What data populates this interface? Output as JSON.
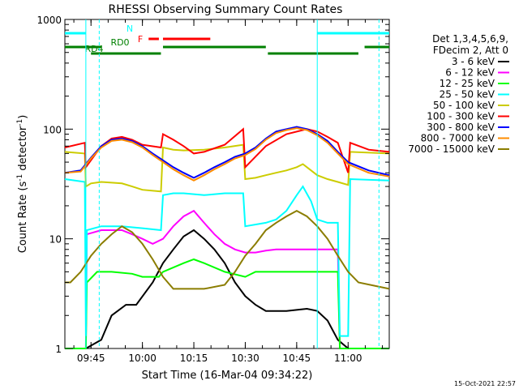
{
  "chart_data": {
    "type": "line",
    "title": "RHESSI Observing Summary Count Rates",
    "xlabel": "Start Time (16-Mar-04 09:34:22)",
    "ylabel_main": "Count Rate (s",
    "ylabel_sup1": "-1",
    "ylabel_mid": " detector",
    "ylabel_sup2": "-1",
    "ylabel_end": ")",
    "yscale": "log",
    "ylim": [
      1,
      1000
    ],
    "xlim_minutes": [
      9.623,
      11.2
    ],
    "xticks": [
      {
        "label": "09:45",
        "value": 9.75
      },
      {
        "label": "10:00",
        "value": 10.0
      },
      {
        "label": "10:15",
        "value": 10.25
      },
      {
        "label": "10:30",
        "value": 10.5
      },
      {
        "label": "10:45",
        "value": 10.75
      },
      {
        "label": "11:00",
        "value": 11.0
      }
    ],
    "yticks": [
      {
        "label": "1",
        "value": 1
      },
      {
        "label": "10",
        "value": 10
      },
      {
        "label": "100",
        "value": 100
      },
      {
        "label": "1000",
        "value": 1000
      }
    ],
    "legend_header": [
      "Det 1,3,4,5,6,9,",
      "FDecim 2, Att 0"
    ],
    "legend_position": "right",
    "series": [
      {
        "name": "3 - 6 keV",
        "color": "#000000",
        "points": [
          [
            9.623,
            1
          ],
          [
            9.725,
            1
          ],
          [
            9.8,
            1.2
          ],
          [
            9.85,
            2
          ],
          [
            9.92,
            2.5
          ],
          [
            9.97,
            2.5
          ],
          [
            10.05,
            4
          ],
          [
            10.1,
            6
          ],
          [
            10.15,
            8
          ],
          [
            10.2,
            10.5
          ],
          [
            10.25,
            12
          ],
          [
            10.3,
            10
          ],
          [
            10.35,
            8
          ],
          [
            10.4,
            6
          ],
          [
            10.45,
            4
          ],
          [
            10.5,
            3
          ],
          [
            10.55,
            2.5
          ],
          [
            10.6,
            2.2
          ],
          [
            10.7,
            2.2
          ],
          [
            10.8,
            2.3
          ],
          [
            10.85,
            2.2
          ],
          [
            10.9,
            1.8
          ],
          [
            10.95,
            1.2
          ],
          [
            11.0,
            1
          ],
          [
            11.2,
            1
          ]
        ]
      },
      {
        "name": "6 - 12 keV",
        "color": "#ff00ff",
        "points": [
          [
            9.623,
            1
          ],
          [
            9.725,
            1
          ],
          [
            9.73,
            11
          ],
          [
            9.8,
            12
          ],
          [
            9.85,
            12
          ],
          [
            9.9,
            12
          ],
          [
            9.95,
            11
          ],
          [
            10.0,
            10
          ],
          [
            10.05,
            9
          ],
          [
            10.1,
            10
          ],
          [
            10.15,
            13
          ],
          [
            10.2,
            16
          ],
          [
            10.25,
            18
          ],
          [
            10.3,
            14
          ],
          [
            10.35,
            11
          ],
          [
            10.4,
            9
          ],
          [
            10.45,
            8
          ],
          [
            10.5,
            7.5
          ],
          [
            10.55,
            7.5
          ],
          [
            10.6,
            7.8
          ],
          [
            10.65,
            8
          ],
          [
            10.7,
            8
          ],
          [
            10.8,
            8
          ],
          [
            10.9,
            8
          ],
          [
            10.95,
            8
          ],
          [
            10.96,
            1
          ],
          [
            11.2,
            1
          ]
        ]
      },
      {
        "name": "12 - 25 keV",
        "color": "#00ff00",
        "points": [
          [
            9.623,
            1
          ],
          [
            9.725,
            1
          ],
          [
            9.73,
            4
          ],
          [
            9.78,
            5
          ],
          [
            9.85,
            5
          ],
          [
            9.95,
            4.8
          ],
          [
            10.0,
            4.5
          ],
          [
            10.08,
            4.5
          ],
          [
            10.1,
            5
          ],
          [
            10.2,
            6
          ],
          [
            10.25,
            6.5
          ],
          [
            10.3,
            6
          ],
          [
            10.4,
            5
          ],
          [
            10.5,
            4.5
          ],
          [
            10.55,
            5
          ],
          [
            10.6,
            5
          ],
          [
            10.7,
            5
          ],
          [
            10.8,
            5
          ],
          [
            10.9,
            5
          ],
          [
            10.95,
            5
          ],
          [
            10.96,
            1
          ],
          [
            11.2,
            1
          ]
        ]
      },
      {
        "name": "25 - 50 keV",
        "color": "#00ffff",
        "points": [
          [
            9.623,
            35
          ],
          [
            9.72,
            33
          ],
          [
            9.725,
            1.3
          ],
          [
            9.73,
            12
          ],
          [
            9.8,
            13
          ],
          [
            9.9,
            13
          ],
          [
            10.0,
            12.5
          ],
          [
            10.09,
            12
          ],
          [
            10.1,
            25
          ],
          [
            10.15,
            26
          ],
          [
            10.2,
            26
          ],
          [
            10.3,
            25
          ],
          [
            10.4,
            26
          ],
          [
            10.49,
            26
          ],
          [
            10.5,
            13
          ],
          [
            10.6,
            14
          ],
          [
            10.65,
            15
          ],
          [
            10.7,
            18
          ],
          [
            10.75,
            25
          ],
          [
            10.78,
            30
          ],
          [
            10.82,
            22
          ],
          [
            10.85,
            15
          ],
          [
            10.9,
            14
          ],
          [
            10.95,
            14
          ],
          [
            10.96,
            1.3
          ],
          [
            11.0,
            1.3
          ],
          [
            11.01,
            35
          ],
          [
            11.2,
            34
          ]
        ]
      },
      {
        "name": "50 - 100 keV",
        "color": "#cccc00",
        "points": [
          [
            9.623,
            62
          ],
          [
            9.72,
            60
          ],
          [
            9.725,
            30
          ],
          [
            9.75,
            32
          ],
          [
            9.8,
            33
          ],
          [
            9.9,
            32
          ],
          [
            9.95,
            30
          ],
          [
            10.0,
            28
          ],
          [
            10.09,
            27
          ],
          [
            10.1,
            68
          ],
          [
            10.15,
            65
          ],
          [
            10.2,
            64
          ],
          [
            10.3,
            65
          ],
          [
            10.4,
            68
          ],
          [
            10.49,
            72
          ],
          [
            10.5,
            35
          ],
          [
            10.55,
            36
          ],
          [
            10.6,
            38
          ],
          [
            10.65,
            40
          ],
          [
            10.7,
            42
          ],
          [
            10.75,
            45
          ],
          [
            10.78,
            48
          ],
          [
            10.82,
            42
          ],
          [
            10.85,
            38
          ],
          [
            10.9,
            35
          ],
          [
            10.95,
            33
          ],
          [
            11.0,
            31
          ],
          [
            11.01,
            62
          ],
          [
            11.2,
            60
          ]
        ]
      },
      {
        "name": "100 - 300 keV",
        "color": "#ff0000",
        "points": [
          [
            9.623,
            68
          ],
          [
            9.72,
            75
          ],
          [
            9.725,
            45
          ],
          [
            9.8,
            70
          ],
          [
            9.85,
            82
          ],
          [
            9.9,
            85
          ],
          [
            9.95,
            80
          ],
          [
            10.0,
            72
          ],
          [
            10.09,
            68
          ],
          [
            10.1,
            90
          ],
          [
            10.15,
            80
          ],
          [
            10.2,
            70
          ],
          [
            10.25,
            60
          ],
          [
            10.3,
            62
          ],
          [
            10.4,
            72
          ],
          [
            10.49,
            100
          ],
          [
            10.5,
            45
          ],
          [
            10.6,
            70
          ],
          [
            10.7,
            90
          ],
          [
            10.8,
            100
          ],
          [
            10.85,
            95
          ],
          [
            10.9,
            85
          ],
          [
            10.95,
            75
          ],
          [
            11.0,
            40
          ],
          [
            11.01,
            75
          ],
          [
            11.1,
            65
          ],
          [
            11.2,
            62
          ]
        ]
      },
      {
        "name": "300 - 800 keV",
        "color": "#0000ff",
        "points": [
          [
            9.623,
            40
          ],
          [
            9.7,
            42
          ],
          [
            9.75,
            55
          ],
          [
            9.8,
            70
          ],
          [
            9.85,
            80
          ],
          [
            9.9,
            82
          ],
          [
            9.95,
            78
          ],
          [
            10.0,
            70
          ],
          [
            10.05,
            60
          ],
          [
            10.1,
            52
          ],
          [
            10.15,
            45
          ],
          [
            10.2,
            40
          ],
          [
            10.25,
            36
          ],
          [
            10.3,
            40
          ],
          [
            10.35,
            45
          ],
          [
            10.4,
            50
          ],
          [
            10.45,
            56
          ],
          [
            10.5,
            60
          ],
          [
            10.55,
            68
          ],
          [
            10.6,
            82
          ],
          [
            10.65,
            95
          ],
          [
            10.7,
            100
          ],
          [
            10.75,
            105
          ],
          [
            10.8,
            100
          ],
          [
            10.85,
            90
          ],
          [
            10.9,
            78
          ],
          [
            10.95,
            62
          ],
          [
            11.0,
            50
          ],
          [
            11.1,
            42
          ],
          [
            11.2,
            38
          ]
        ]
      },
      {
        "name": "800 - 7000 keV",
        "color": "#ff8c00",
        "points": [
          [
            9.623,
            40
          ],
          [
            9.7,
            41
          ],
          [
            9.75,
            54
          ],
          [
            9.8,
            68
          ],
          [
            9.85,
            78
          ],
          [
            9.9,
            80
          ],
          [
            9.95,
            76
          ],
          [
            10.0,
            68
          ],
          [
            10.05,
            58
          ],
          [
            10.1,
            50
          ],
          [
            10.15,
            43
          ],
          [
            10.2,
            38
          ],
          [
            10.25,
            34
          ],
          [
            10.3,
            38
          ],
          [
            10.35,
            43
          ],
          [
            10.4,
            48
          ],
          [
            10.45,
            54
          ],
          [
            10.5,
            58
          ],
          [
            10.55,
            66
          ],
          [
            10.6,
            80
          ],
          [
            10.65,
            92
          ],
          [
            10.7,
            98
          ],
          [
            10.75,
            102
          ],
          [
            10.8,
            98
          ],
          [
            10.85,
            88
          ],
          [
            10.9,
            75
          ],
          [
            10.95,
            60
          ],
          [
            11.0,
            48
          ],
          [
            11.1,
            40
          ],
          [
            11.2,
            37
          ]
        ]
      },
      {
        "name": "7000 - 15000 keV",
        "color": "#8b7d00",
        "points": [
          [
            9.623,
            4
          ],
          [
            9.65,
            4
          ],
          [
            9.7,
            5
          ],
          [
            9.75,
            7
          ],
          [
            9.8,
            9
          ],
          [
            9.85,
            11
          ],
          [
            9.9,
            13
          ],
          [
            9.95,
            11.5
          ],
          [
            10.0,
            9
          ],
          [
            10.05,
            6.5
          ],
          [
            10.1,
            4.5
          ],
          [
            10.15,
            3.5
          ],
          [
            10.2,
            3.5
          ],
          [
            10.3,
            3.5
          ],
          [
            10.4,
            3.8
          ],
          [
            10.45,
            5
          ],
          [
            10.5,
            7
          ],
          [
            10.55,
            9
          ],
          [
            10.6,
            12
          ],
          [
            10.65,
            14
          ],
          [
            10.7,
            16
          ],
          [
            10.75,
            18
          ],
          [
            10.8,
            16
          ],
          [
            10.85,
            13
          ],
          [
            10.9,
            10
          ],
          [
            10.95,
            7
          ],
          [
            11.0,
            5
          ],
          [
            11.05,
            4
          ],
          [
            11.2,
            3.5
          ]
        ]
      }
    ],
    "status_bars": [
      {
        "label": "N",
        "color": "#00ffff",
        "segments": [
          [
            9.623,
            9.725
          ],
          [
            10.85,
            11.2
          ]
        ],
        "level": 0
      },
      {
        "label": "F",
        "color": "#ff0000",
        "segments": [
          [
            10.03,
            10.08
          ],
          [
            10.1,
            10.33
          ]
        ],
        "level": 1
      },
      {
        "label": "RD0",
        "color": "#008000",
        "segments": [
          [
            9.623,
            9.8
          ],
          [
            10.1,
            10.6
          ],
          [
            11.08,
            11.2
          ]
        ],
        "level": 2
      },
      {
        "label": "RD4",
        "color": "#008000",
        "segments": [
          [
            9.75,
            10.09
          ],
          [
            10.61,
            11.05
          ]
        ],
        "level": 3
      }
    ],
    "vertical_markers": [
      {
        "x": 9.725,
        "style": "solid",
        "color": "#00ffff"
      },
      {
        "x": 9.79,
        "style": "dashed",
        "color": "#00ffff"
      },
      {
        "x": 10.85,
        "style": "solid",
        "color": "#00ffff"
      },
      {
        "x": 11.15,
        "style": "dashed",
        "color": "#00ffff"
      }
    ],
    "grid": false
  },
  "footer_date": "15-Oct-2021 22:57"
}
